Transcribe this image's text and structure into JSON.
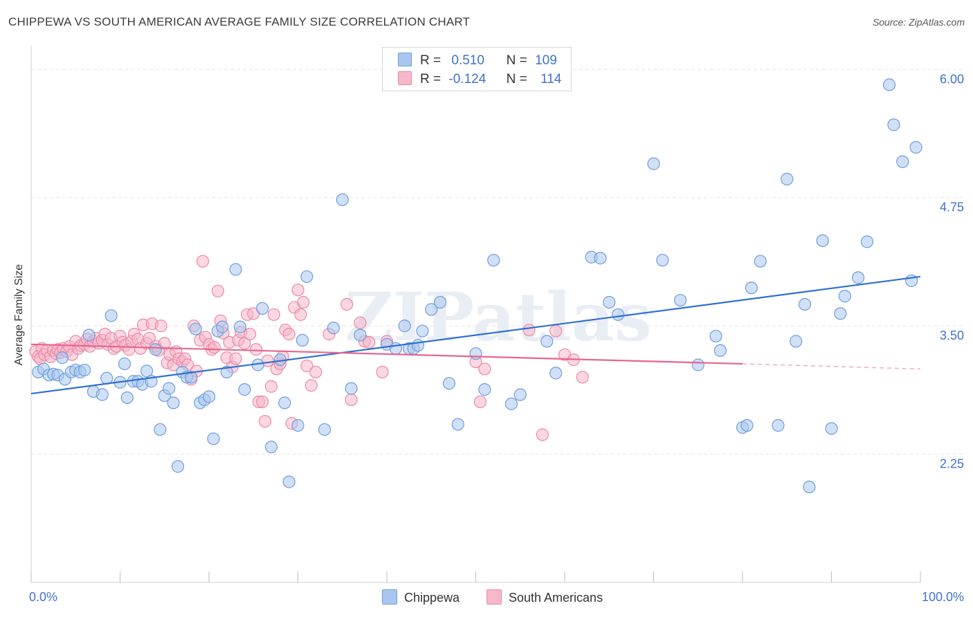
{
  "title": "CHIPPEWA VS SOUTH AMERICAN AVERAGE FAMILY SIZE CORRELATION CHART",
  "source": "Source: ZipAtlas.com",
  "watermark": "ZIPatlas",
  "colors": {
    "chippewa_fill": "#a9c6ef",
    "chippewa_stroke": "#6e9ddd",
    "chippewa_line": "#2f6fcf",
    "south_fill": "#f6b7c9",
    "south_stroke": "#ec89a8",
    "south_line": "#e8648f",
    "tick_label": "#3d72cc",
    "grid": "#e3e3e3"
  },
  "legend": {
    "rows": [
      {
        "r_label": "R =",
        "r_value": "0.510",
        "n_label": "N =",
        "n_value": "109"
      },
      {
        "r_label": "R =",
        "r_value": "-0.124",
        "n_label": "N =",
        "n_value": "114"
      }
    ]
  },
  "chart_data": {
    "type": "scatter",
    "title": "CHIPPEWA VS SOUTH AMERICAN AVERAGE FAMILY SIZE CORRELATION CHART",
    "xlabel": "",
    "ylabel": "Average Family Size",
    "xlim": [
      0,
      100
    ],
    "ylim": [
      1.0,
      6.15
    ],
    "x_tick_labels": [
      "0.0%",
      "100.0%"
    ],
    "y_ticks": [
      2.25,
      3.5,
      4.75,
      6.0
    ],
    "y_tick_labels": [
      "2.25",
      "3.50",
      "4.75",
      "6.00"
    ],
    "grid": true,
    "legend_placement": "top-center",
    "series": [
      {
        "name": "Chippewa",
        "stats": {
          "R": 0.51,
          "N": 109
        },
        "trend": {
          "x": [
            0,
            100
          ],
          "y": [
            2.84,
            3.98
          ]
        },
        "points": [
          [
            0.8,
            3.05
          ],
          [
            1.4,
            3.08
          ],
          [
            2.0,
            3.02
          ],
          [
            2.5,
            3.03
          ],
          [
            3.0,
            3.02
          ],
          [
            3.5,
            3.19
          ],
          [
            3.8,
            2.98
          ],
          [
            4.5,
            3.05
          ],
          [
            5.0,
            3.07
          ],
          [
            5.5,
            3.05
          ],
          [
            6.0,
            3.07
          ],
          [
            6.5,
            3.41
          ],
          [
            7.0,
            2.86
          ],
          [
            8.0,
            2.83
          ],
          [
            8.5,
            2.99
          ],
          [
            9.0,
            3.6
          ],
          [
            10.0,
            2.95
          ],
          [
            10.5,
            3.13
          ],
          [
            10.8,
            2.8
          ],
          [
            11.5,
            2.96
          ],
          [
            12.0,
            2.96
          ],
          [
            12.5,
            2.93
          ],
          [
            13.0,
            3.06
          ],
          [
            13.5,
            2.96
          ],
          [
            14.0,
            3.27
          ],
          [
            14.5,
            2.49
          ],
          [
            15.0,
            2.82
          ],
          [
            15.5,
            2.89
          ],
          [
            16.0,
            2.75
          ],
          [
            16.5,
            2.13
          ],
          [
            17.0,
            3.05
          ],
          [
            17.5,
            3.0
          ],
          [
            18.0,
            3.0
          ],
          [
            18.5,
            3.47
          ],
          [
            19.0,
            2.75
          ],
          [
            19.5,
            2.78
          ],
          [
            20.0,
            2.81
          ],
          [
            20.5,
            2.4
          ],
          [
            21.0,
            3.45
          ],
          [
            21.5,
            3.49
          ],
          [
            22.0,
            3.05
          ],
          [
            23.0,
            4.05
          ],
          [
            23.5,
            3.49
          ],
          [
            24.0,
            2.88
          ],
          [
            25.5,
            3.12
          ],
          [
            26.0,
            3.67
          ],
          [
            27.0,
            2.32
          ],
          [
            28.0,
            3.17
          ],
          [
            28.5,
            2.75
          ],
          [
            29.0,
            1.98
          ],
          [
            30.0,
            2.53
          ],
          [
            30.5,
            3.36
          ],
          [
            31.0,
            3.98
          ],
          [
            33.0,
            2.49
          ],
          [
            34.0,
            3.48
          ],
          [
            35.0,
            4.73
          ],
          [
            36.0,
            2.89
          ],
          [
            37.0,
            3.41
          ],
          [
            40.0,
            3.32
          ],
          [
            41.0,
            3.28
          ],
          [
            42.0,
            3.5
          ],
          [
            42.5,
            3.28
          ],
          [
            43.0,
            3.28
          ],
          [
            43.5,
            3.31
          ],
          [
            44.0,
            3.45
          ],
          [
            45.0,
            3.66
          ],
          [
            46.0,
            3.73
          ],
          [
            47.0,
            2.94
          ],
          [
            48.0,
            2.54
          ],
          [
            50.0,
            3.23
          ],
          [
            51.0,
            2.88
          ],
          [
            52.0,
            4.14
          ],
          [
            54.0,
            2.74
          ],
          [
            55.0,
            2.83
          ],
          [
            58.0,
            3.35
          ],
          [
            59.0,
            3.04
          ],
          [
            63.0,
            4.17
          ],
          [
            64.0,
            4.16
          ],
          [
            65.0,
            3.73
          ],
          [
            66.0,
            3.61
          ],
          [
            70.0,
            5.08
          ],
          [
            71.0,
            4.14
          ],
          [
            73.0,
            3.75
          ],
          [
            75.0,
            3.12
          ],
          [
            77.0,
            3.4
          ],
          [
            77.5,
            3.26
          ],
          [
            80.0,
            2.51
          ],
          [
            80.5,
            2.53
          ],
          [
            81.0,
            3.87
          ],
          [
            82.0,
            4.13
          ],
          [
            84.0,
            2.53
          ],
          [
            85.0,
            4.93
          ],
          [
            86.0,
            3.35
          ],
          [
            87.0,
            3.71
          ],
          [
            87.5,
            1.93
          ],
          [
            89.0,
            4.33
          ],
          [
            90.0,
            2.5
          ],
          [
            91.0,
            3.62
          ],
          [
            91.5,
            3.79
          ],
          [
            93.0,
            3.97
          ],
          [
            94.0,
            4.32
          ],
          [
            96.5,
            5.85
          ],
          [
            97.0,
            5.46
          ],
          [
            98.0,
            5.1
          ],
          [
            99.0,
            3.94
          ],
          [
            99.5,
            5.24
          ]
        ]
      },
      {
        "name": "South Americans",
        "stats": {
          "R": -0.124,
          "N": 114
        },
        "trend": {
          "x": [
            0,
            80
          ],
          "y": [
            3.32,
            3.13
          ]
        },
        "trend_dashed": {
          "x": [
            80,
            100
          ],
          "y": [
            3.13,
            3.08
          ]
        },
        "points": [
          [
            0.5,
            3.25
          ],
          [
            0.8,
            3.2
          ],
          [
            1.0,
            3.18
          ],
          [
            1.2,
            3.28
          ],
          [
            1.5,
            3.22
          ],
          [
            1.8,
            3.26
          ],
          [
            2.2,
            3.2
          ],
          [
            2.5,
            3.26
          ],
          [
            2.8,
            3.23
          ],
          [
            3.0,
            3.27
          ],
          [
            3.3,
            3.24
          ],
          [
            3.6,
            3.28
          ],
          [
            4.0,
            3.25
          ],
          [
            4.3,
            3.3
          ],
          [
            4.6,
            3.22
          ],
          [
            5.0,
            3.35
          ],
          [
            5.3,
            3.28
          ],
          [
            5.6,
            3.31
          ],
          [
            6.0,
            3.32
          ],
          [
            6.3,
            3.37
          ],
          [
            6.6,
            3.3
          ],
          [
            7.0,
            3.35
          ],
          [
            7.3,
            3.38
          ],
          [
            7.6,
            3.33
          ],
          [
            8.0,
            3.36
          ],
          [
            8.3,
            3.42
          ],
          [
            8.6,
            3.32
          ],
          [
            9.0,
            3.38
          ],
          [
            9.3,
            3.28
          ],
          [
            9.6,
            3.3
          ],
          [
            10.0,
            3.4
          ],
          [
            10.3,
            3.34
          ],
          [
            10.6,
            3.31
          ],
          [
            11.0,
            3.27
          ],
          [
            11.3,
            3.35
          ],
          [
            11.6,
            3.42
          ],
          [
            12.0,
            3.37
          ],
          [
            12.3,
            3.28
          ],
          [
            12.6,
            3.51
          ],
          [
            13.0,
            3.33
          ],
          [
            13.3,
            3.38
          ],
          [
            13.6,
            3.52
          ],
          [
            14.0,
            3.3
          ],
          [
            14.3,
            3.26
          ],
          [
            14.6,
            3.5
          ],
          [
            15.0,
            3.33
          ],
          [
            15.3,
            3.14
          ],
          [
            15.6,
            3.22
          ],
          [
            16.0,
            3.12
          ],
          [
            16.3,
            3.25
          ],
          [
            16.6,
            3.18
          ],
          [
            17.0,
            3.15
          ],
          [
            17.3,
            3.18
          ],
          [
            17.6,
            3.12
          ],
          [
            18.0,
            2.98
          ],
          [
            18.3,
            3.5
          ],
          [
            18.6,
            3.06
          ],
          [
            19.0,
            3.36
          ],
          [
            19.3,
            4.13
          ],
          [
            19.6,
            3.39
          ],
          [
            20.0,
            3.32
          ],
          [
            20.3,
            3.27
          ],
          [
            20.6,
            3.29
          ],
          [
            21.0,
            3.84
          ],
          [
            21.3,
            3.55
          ],
          [
            21.6,
            3.43
          ],
          [
            22.0,
            3.19
          ],
          [
            22.3,
            3.34
          ],
          [
            22.6,
            3.1
          ],
          [
            23.0,
            3.18
          ],
          [
            23.3,
            3.36
          ],
          [
            23.6,
            3.44
          ],
          [
            24.0,
            3.33
          ],
          [
            24.3,
            3.61
          ],
          [
            24.6,
            3.42
          ],
          [
            25.0,
            3.62
          ],
          [
            25.3,
            3.27
          ],
          [
            25.6,
            2.76
          ],
          [
            26.0,
            2.76
          ],
          [
            26.3,
            2.57
          ],
          [
            26.6,
            3.16
          ],
          [
            27.0,
            2.91
          ],
          [
            27.3,
            3.61
          ],
          [
            27.6,
            3.08
          ],
          [
            28.0,
            3.13
          ],
          [
            28.3,
            3.2
          ],
          [
            28.6,
            3.46
          ],
          [
            29.0,
            3.42
          ],
          [
            29.3,
            2.55
          ],
          [
            29.6,
            3.68
          ],
          [
            30.0,
            3.85
          ],
          [
            30.3,
            3.61
          ],
          [
            30.6,
            3.73
          ],
          [
            31.0,
            3.11
          ],
          [
            31.5,
            2.92
          ],
          [
            32.0,
            3.05
          ],
          [
            33.5,
            3.42
          ],
          [
            35.5,
            3.71
          ],
          [
            36.0,
            2.78
          ],
          [
            37.0,
            3.53
          ],
          [
            37.5,
            3.35
          ],
          [
            38.0,
            3.34
          ],
          [
            39.5,
            3.05
          ],
          [
            40.0,
            3.35
          ],
          [
            50.0,
            3.15
          ],
          [
            50.5,
            2.76
          ],
          [
            51.0,
            3.08
          ],
          [
            56.0,
            3.46
          ],
          [
            57.5,
            2.44
          ],
          [
            59.0,
            3.45
          ],
          [
            60.0,
            3.22
          ],
          [
            61.0,
            3.17
          ],
          [
            62.0,
            3.0
          ]
        ]
      }
    ]
  },
  "bottom_legend": {
    "items": [
      {
        "label": "Chippewa"
      },
      {
        "label": "South Americans"
      }
    ]
  }
}
